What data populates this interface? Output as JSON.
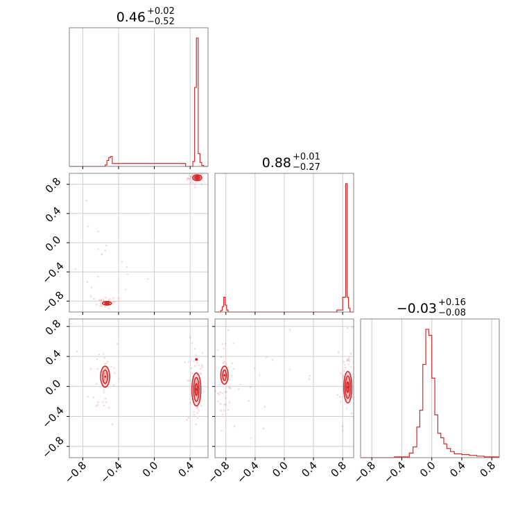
{
  "chart_data": {
    "type": "corner",
    "color": "#d62728",
    "titles": [
      {
        "value": "0.46",
        "plus": "+0.02",
        "minus": "−0.52"
      },
      {
        "value": "0.88",
        "plus": "+0.01",
        "minus": "−0.27"
      },
      {
        "value": "−0.03",
        "plus": "+0.16",
        "minus": "−0.08"
      }
    ],
    "axes": [
      {
        "range": [
          -0.95,
          0.6
        ],
        "ticks": [
          -0.8,
          -0.4,
          0.0,
          0.4
        ],
        "tick_labels": [
          "−0.8",
          "−0.4",
          "0.0",
          "0.4"
        ]
      },
      {
        "range": [
          -0.95,
          0.95
        ],
        "ticks": [
          -0.8,
          -0.4,
          0.0,
          0.4,
          0.8
        ],
        "tick_labels": [
          "−0.8",
          "−0.4",
          "0.0",
          "0.4",
          "0.8"
        ]
      },
      {
        "range": [
          -0.95,
          0.9
        ],
        "ticks": [
          -0.8,
          -0.4,
          0.0,
          0.4,
          0.8
        ],
        "tick_labels": [
          "−0.8",
          "−0.4",
          "0.0",
          "0.4",
          "0.8"
        ]
      }
    ],
    "grid": true,
    "histograms": [
      {
        "edges": [
          -0.95,
          -0.55,
          -0.53,
          -0.51,
          -0.49,
          -0.47,
          0.35,
          0.43,
          0.45,
          0.47,
          0.49,
          0.51,
          0.53,
          0.55,
          0.6
        ],
        "counts": [
          0,
          3,
          12,
          18,
          20,
          6,
          0,
          10,
          160,
          260,
          26,
          8,
          2,
          0
        ]
      },
      {
        "edges": [
          -0.95,
          -0.87,
          -0.85,
          -0.83,
          -0.81,
          -0.79,
          -0.77,
          0.72,
          0.8,
          0.84,
          0.86,
          0.88,
          0.9,
          0.92,
          0.95
        ],
        "counts": [
          0,
          3,
          11,
          30,
          14,
          4,
          0,
          4,
          30,
          260,
          30,
          8,
          0,
          0
        ]
      },
      {
        "edges": [
          -0.95,
          -0.5,
          -0.3,
          -0.25,
          -0.2,
          -0.16,
          -0.12,
          -0.08,
          -0.04,
          0.0,
          0.04,
          0.08,
          0.12,
          0.16,
          0.2,
          0.25,
          0.3,
          0.4,
          0.5,
          0.6,
          0.7,
          0.8,
          0.9
        ],
        "counts": [
          0,
          1,
          6,
          14,
          40,
          62,
          122,
          168,
          160,
          104,
          56,
          32,
          26,
          18,
          12,
          8,
          5,
          4,
          3,
          2,
          1,
          1
        ]
      }
    ],
    "scatter_blobs": [
      {
        "pair": [
          0,
          1
        ],
        "cx": 0.47,
        "cy": 0.89,
        "sx": 0.05,
        "sy": 0.05,
        "n": 45
      },
      {
        "pair": [
          0,
          1
        ],
        "cx": -0.55,
        "cy": -0.82,
        "sx": 0.06,
        "sy": 0.04,
        "n": 25
      },
      {
        "pair": [
          0,
          1
        ],
        "cx": -0.6,
        "cy": -0.3,
        "sx": 0.25,
        "sy": 0.35,
        "n": 18
      },
      {
        "pair": [
          0,
          2
        ],
        "cx": 0.46,
        "cy": 0.0,
        "sx": 0.05,
        "sy": 0.3,
        "n": 50
      },
      {
        "pair": [
          0,
          2
        ],
        "cx": -0.55,
        "cy": 0.12,
        "sx": 0.09,
        "sy": 0.3,
        "n": 40
      },
      {
        "pair": [
          1,
          2
        ],
        "cx": 0.87,
        "cy": 0.1,
        "sx": 0.07,
        "sy": 0.3,
        "n": 55
      },
      {
        "pair": [
          1,
          2
        ],
        "cx": -0.82,
        "cy": 0.05,
        "sx": 0.06,
        "sy": 0.3,
        "n": 40
      },
      {
        "pair": [
          1,
          2
        ],
        "cx": -0.3,
        "cy": 0.1,
        "sx": 0.4,
        "sy": 0.3,
        "n": 18
      }
    ],
    "contours": [
      {
        "pair": [
          0,
          1
        ],
        "cx": 0.48,
        "cy": 0.89,
        "levels": [
          [
            0.05,
            0.04
          ],
          [
            0.03,
            0.025
          ],
          [
            0.015,
            0.012
          ]
        ]
      },
      {
        "pair": [
          0,
          1
        ],
        "cx": -0.53,
        "cy": -0.83,
        "levels": [
          [
            0.05,
            0.025
          ],
          [
            0.025,
            0.012
          ]
        ]
      },
      {
        "pair": [
          0,
          2
        ],
        "cx": 0.47,
        "cy": -0.04,
        "levels": [
          [
            0.05,
            0.22
          ],
          [
            0.03,
            0.16
          ],
          [
            0.015,
            0.08
          ]
        ]
      },
      {
        "pair": [
          0,
          2
        ],
        "cx": -0.55,
        "cy": 0.13,
        "levels": [
          [
            0.05,
            0.14
          ],
          [
            0.028,
            0.09
          ]
        ]
      },
      {
        "pair": [
          1,
          2
        ],
        "cx": 0.87,
        "cy": -0.01,
        "levels": [
          [
            0.055,
            0.21
          ],
          [
            0.035,
            0.15
          ],
          [
            0.015,
            0.07
          ]
        ]
      },
      {
        "pair": [
          1,
          2
        ],
        "cx": -0.82,
        "cy": 0.15,
        "levels": [
          [
            0.05,
            0.12
          ],
          [
            0.025,
            0.07
          ]
        ]
      }
    ],
    "markers": [
      {
        "pair": [
          0,
          2
        ],
        "x": 0.47,
        "y": 0.36
      }
    ]
  }
}
